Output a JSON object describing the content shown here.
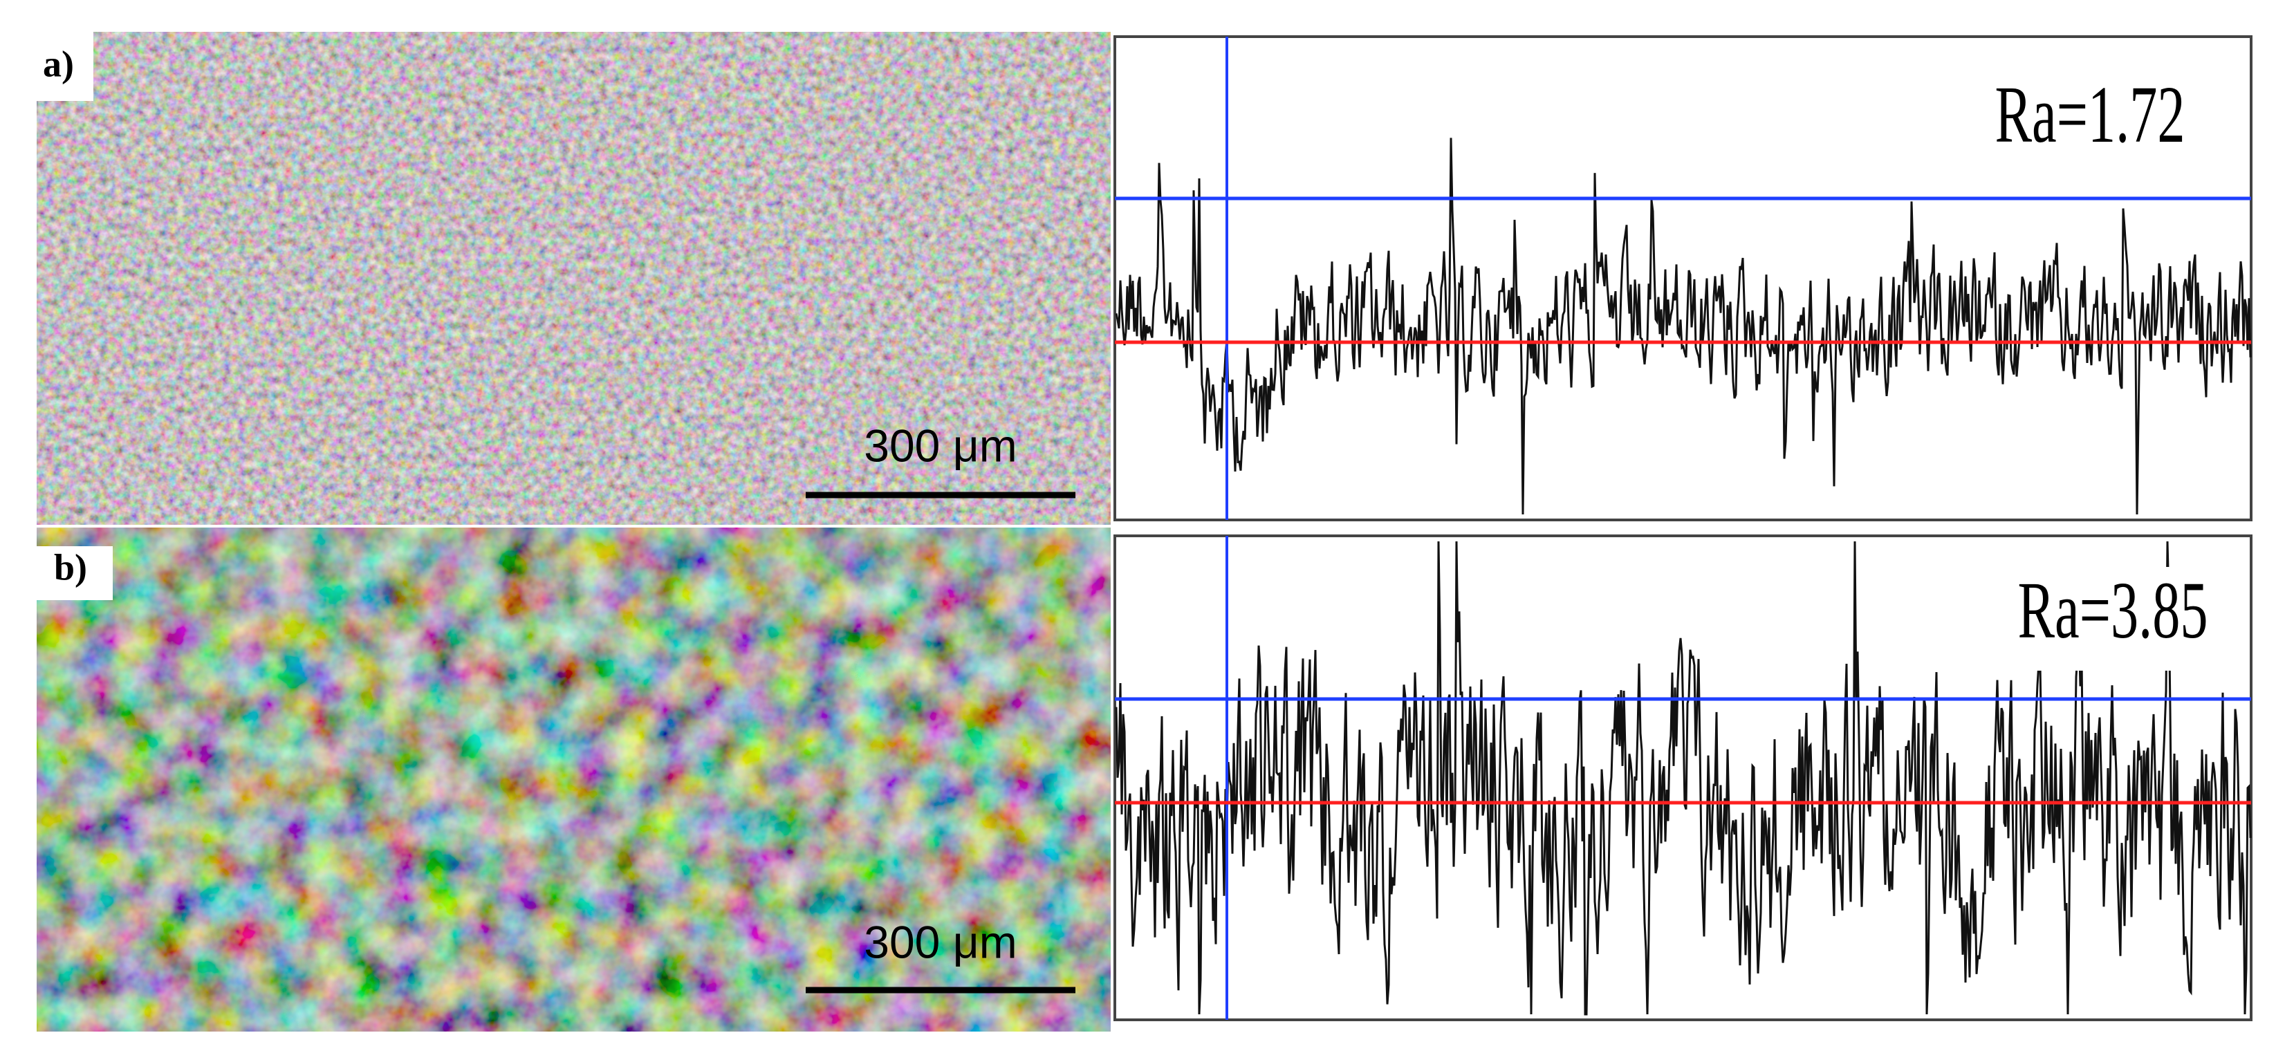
{
  "panels": [
    {
      "label": "a)",
      "scale_bar": "300 μm",
      "roughness": "Ra=1.72"
    },
    {
      "label": "b)",
      "scale_bar": "300 μm",
      "roughness": "Ra=3.85"
    }
  ]
}
